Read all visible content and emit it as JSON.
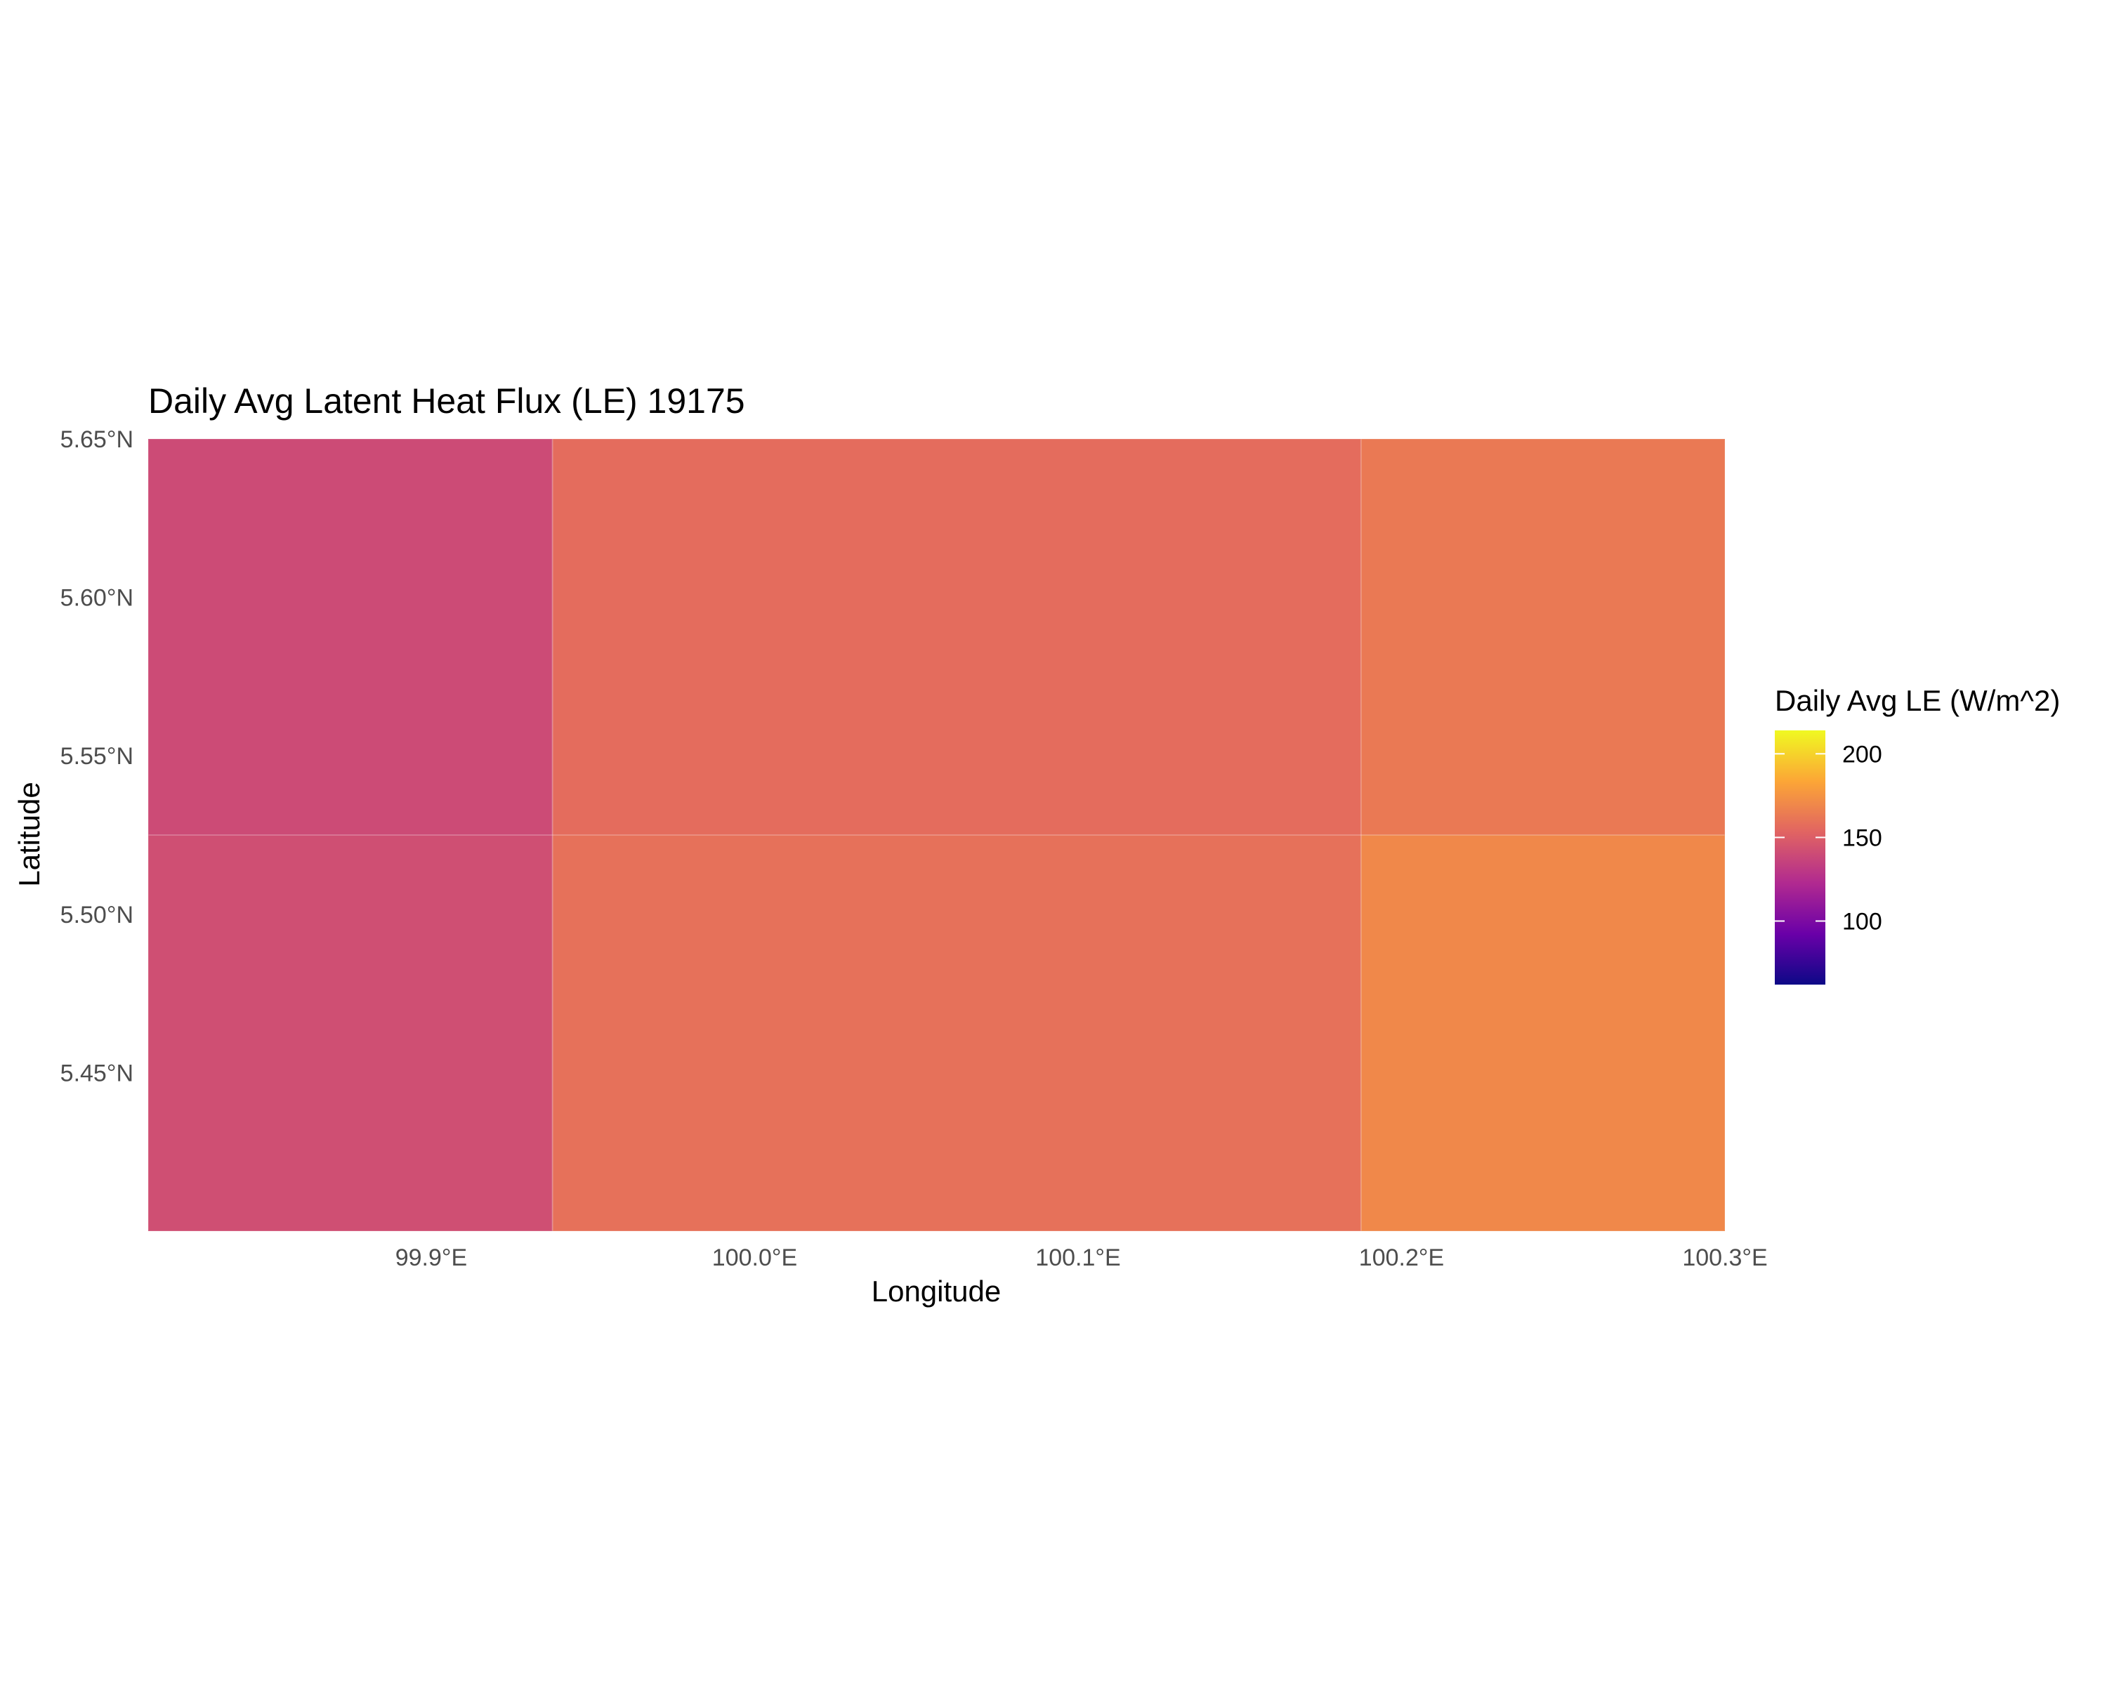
{
  "chart_data": {
    "type": "heatmap",
    "title": "Daily Avg Latent Heat Flux (LE) 19175",
    "xlabel": "Longitude",
    "ylabel": "Latitude",
    "xlim": [
      99.8125,
      100.3
    ],
    "ylim": [
      5.4,
      5.65
    ],
    "x_ticks": [
      {
        "value": 99.9,
        "label": "99.9°E"
      },
      {
        "value": 100.0,
        "label": "100.0°E"
      },
      {
        "value": 100.1,
        "label": "100.1°E"
      },
      {
        "value": 100.2,
        "label": "100.2°E"
      },
      {
        "value": 100.3,
        "label": "100.3°E"
      }
    ],
    "y_ticks": [
      {
        "value": 5.65,
        "label": "5.65°N"
      },
      {
        "value": 5.6,
        "label": "5.60°N"
      },
      {
        "value": 5.55,
        "label": "5.55°N"
      },
      {
        "value": 5.5,
        "label": "5.50°N"
      },
      {
        "value": 5.45,
        "label": "5.45°N"
      }
    ],
    "cells": [
      {
        "x0": 99.8125,
        "x1": 99.9375,
        "y0": 5.525,
        "y1": 5.65,
        "value": 140
      },
      {
        "x0": 99.9375,
        "x1": 100.1875,
        "y0": 5.525,
        "y1": 5.65,
        "value": 157
      },
      {
        "x0": 100.1875,
        "x1": 100.3,
        "y0": 5.525,
        "y1": 5.65,
        "value": 163
      },
      {
        "x0": 99.8125,
        "x1": 99.9375,
        "y0": 5.4,
        "y1": 5.525,
        "value": 142
      },
      {
        "x0": 99.9375,
        "x1": 100.1875,
        "y0": 5.4,
        "y1": 5.525,
        "value": 159
      },
      {
        "x0": 100.1875,
        "x1": 100.3,
        "y0": 5.4,
        "y1": 5.525,
        "value": 170
      }
    ],
    "grid": false,
    "legend": {
      "title": "Daily Avg LE (W/m^2)",
      "position": "right",
      "range": [
        62,
        214
      ],
      "ticks": [
        {
          "value": 100,
          "label": "100"
        },
        {
          "value": 150,
          "label": "150"
        },
        {
          "value": 200,
          "label": "200"
        }
      ],
      "colormap": "plasma",
      "colors": [
        "#0d0887",
        "#6a00a8",
        "#b12a90",
        "#e16462",
        "#fca636",
        "#f0f921"
      ]
    }
  }
}
